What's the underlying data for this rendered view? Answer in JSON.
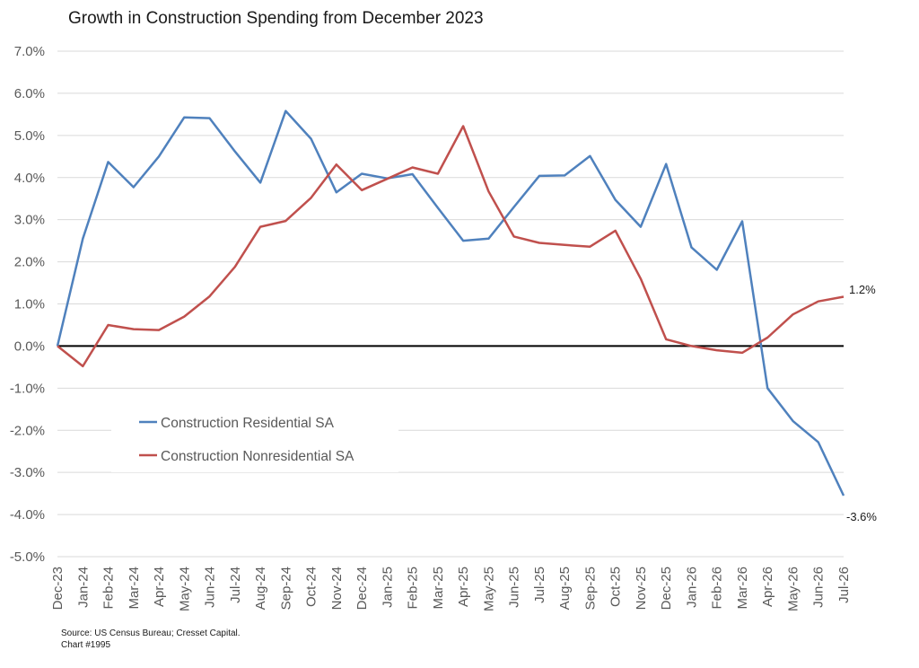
{
  "chart_data": {
    "type": "line",
    "title": "Growth in Construction Spending from December 2023",
    "xlabel": "",
    "ylabel": "",
    "ylim": [
      -5.0,
      7.0
    ],
    "yticks": [
      "7.0%",
      "6.0%",
      "5.0%",
      "4.0%",
      "3.0%",
      "2.0%",
      "1.0%",
      "0.0%",
      "-1.0%",
      "-2.0%",
      "-3.0%",
      "-4.0%",
      "-5.0%"
    ],
    "categories": [
      "Dec-23",
      "Jan-24",
      "Feb-24",
      "Mar-24",
      "Apr-24",
      "May-24",
      "Jun-24",
      "Jul-24",
      "Aug-24",
      "Sep-24",
      "Oct-24",
      "Nov-24",
      "Dec-24",
      "Jan-25",
      "Feb-25",
      "Mar-25",
      "Apr-25",
      "May-25",
      "Jun-25",
      "Jul-25",
      "Aug-25",
      "Sep-25",
      "Oct-25",
      "Nov-25",
      "Dec-25",
      "Jan-26",
      "Feb-26",
      "Mar-26",
      "Apr-26",
      "May-26",
      "Jun-26",
      "Jul-26"
    ],
    "series": [
      {
        "name": "Construction Residential SA",
        "color": "#4f81bd",
        "values": [
          0.0,
          2.55,
          4.37,
          3.77,
          4.5,
          5.43,
          5.41,
          4.62,
          3.88,
          5.58,
          4.92,
          3.65,
          4.09,
          3.98,
          4.08,
          3.28,
          2.5,
          2.55,
          3.3,
          4.04,
          4.05,
          4.51,
          3.47,
          2.83,
          4.32,
          2.34,
          1.81,
          2.96,
          -1.0,
          -1.78,
          -2.28,
          -3.55
        ]
      },
      {
        "name": "Construction Nonresidential SA",
        "color": "#c0504d",
        "values": [
          0.0,
          -0.48,
          0.5,
          0.4,
          0.38,
          0.7,
          1.18,
          1.88,
          2.83,
          2.97,
          3.52,
          4.31,
          3.7,
          3.97,
          4.24,
          4.09,
          5.22,
          3.67,
          2.6,
          2.45,
          2.4,
          2.36,
          2.74,
          1.6,
          0.16,
          0.0,
          -0.1,
          -0.16,
          0.2,
          0.75,
          1.06,
          1.17
        ]
      }
    ],
    "end_labels": {
      "residential": "-3.6%",
      "nonresidential": "1.2%"
    },
    "grid": true,
    "zero_line_color": "#000000",
    "legend_placement": "left-middle"
  },
  "source": {
    "line1": "Source: US Census Bureau; Cresset Capital.",
    "line2": "Chart #1995"
  }
}
